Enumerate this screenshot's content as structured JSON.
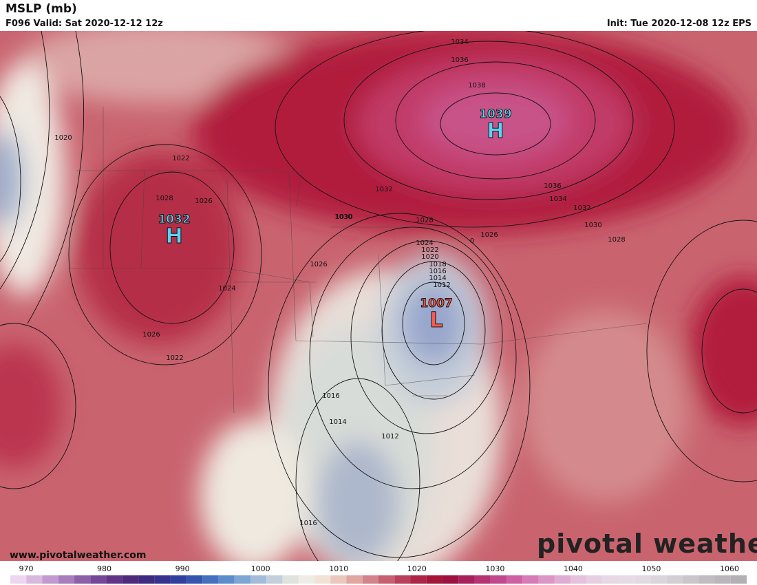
{
  "header": {
    "title": "MSLP (mb)",
    "valid": "F096 Valid: Sat 2020-12-12 12z",
    "init": "Init: Tue 2020-12-08 12z EPS"
  },
  "centers": [
    {
      "value": "1039",
      "kind": "H"
    },
    {
      "value": "1032",
      "kind": "H"
    },
    {
      "value": "1007",
      "kind": "L"
    }
  ],
  "contour_labels": [
    "1034",
    "1036",
    "1038",
    "1020",
    "1022",
    "1028",
    "1026",
    "1032",
    "1030",
    "1024",
    "1022",
    "1020",
    "1018",
    "1016",
    "1014",
    "1012",
    "1026",
    "1024",
    "1026",
    "1022",
    "1016",
    "1014",
    "1012",
    "1016",
    "1036",
    "1034",
    "1032",
    "1030",
    "1028",
    "1026",
    "1030",
    "1028",
    "0"
  ],
  "colorbar": [
    970,
    980,
    990,
    1000,
    1010,
    1020,
    1030,
    1040,
    1050,
    1060
  ],
  "website": "www.pivotalweather.com",
  "watermark": "pivotal weather"
}
